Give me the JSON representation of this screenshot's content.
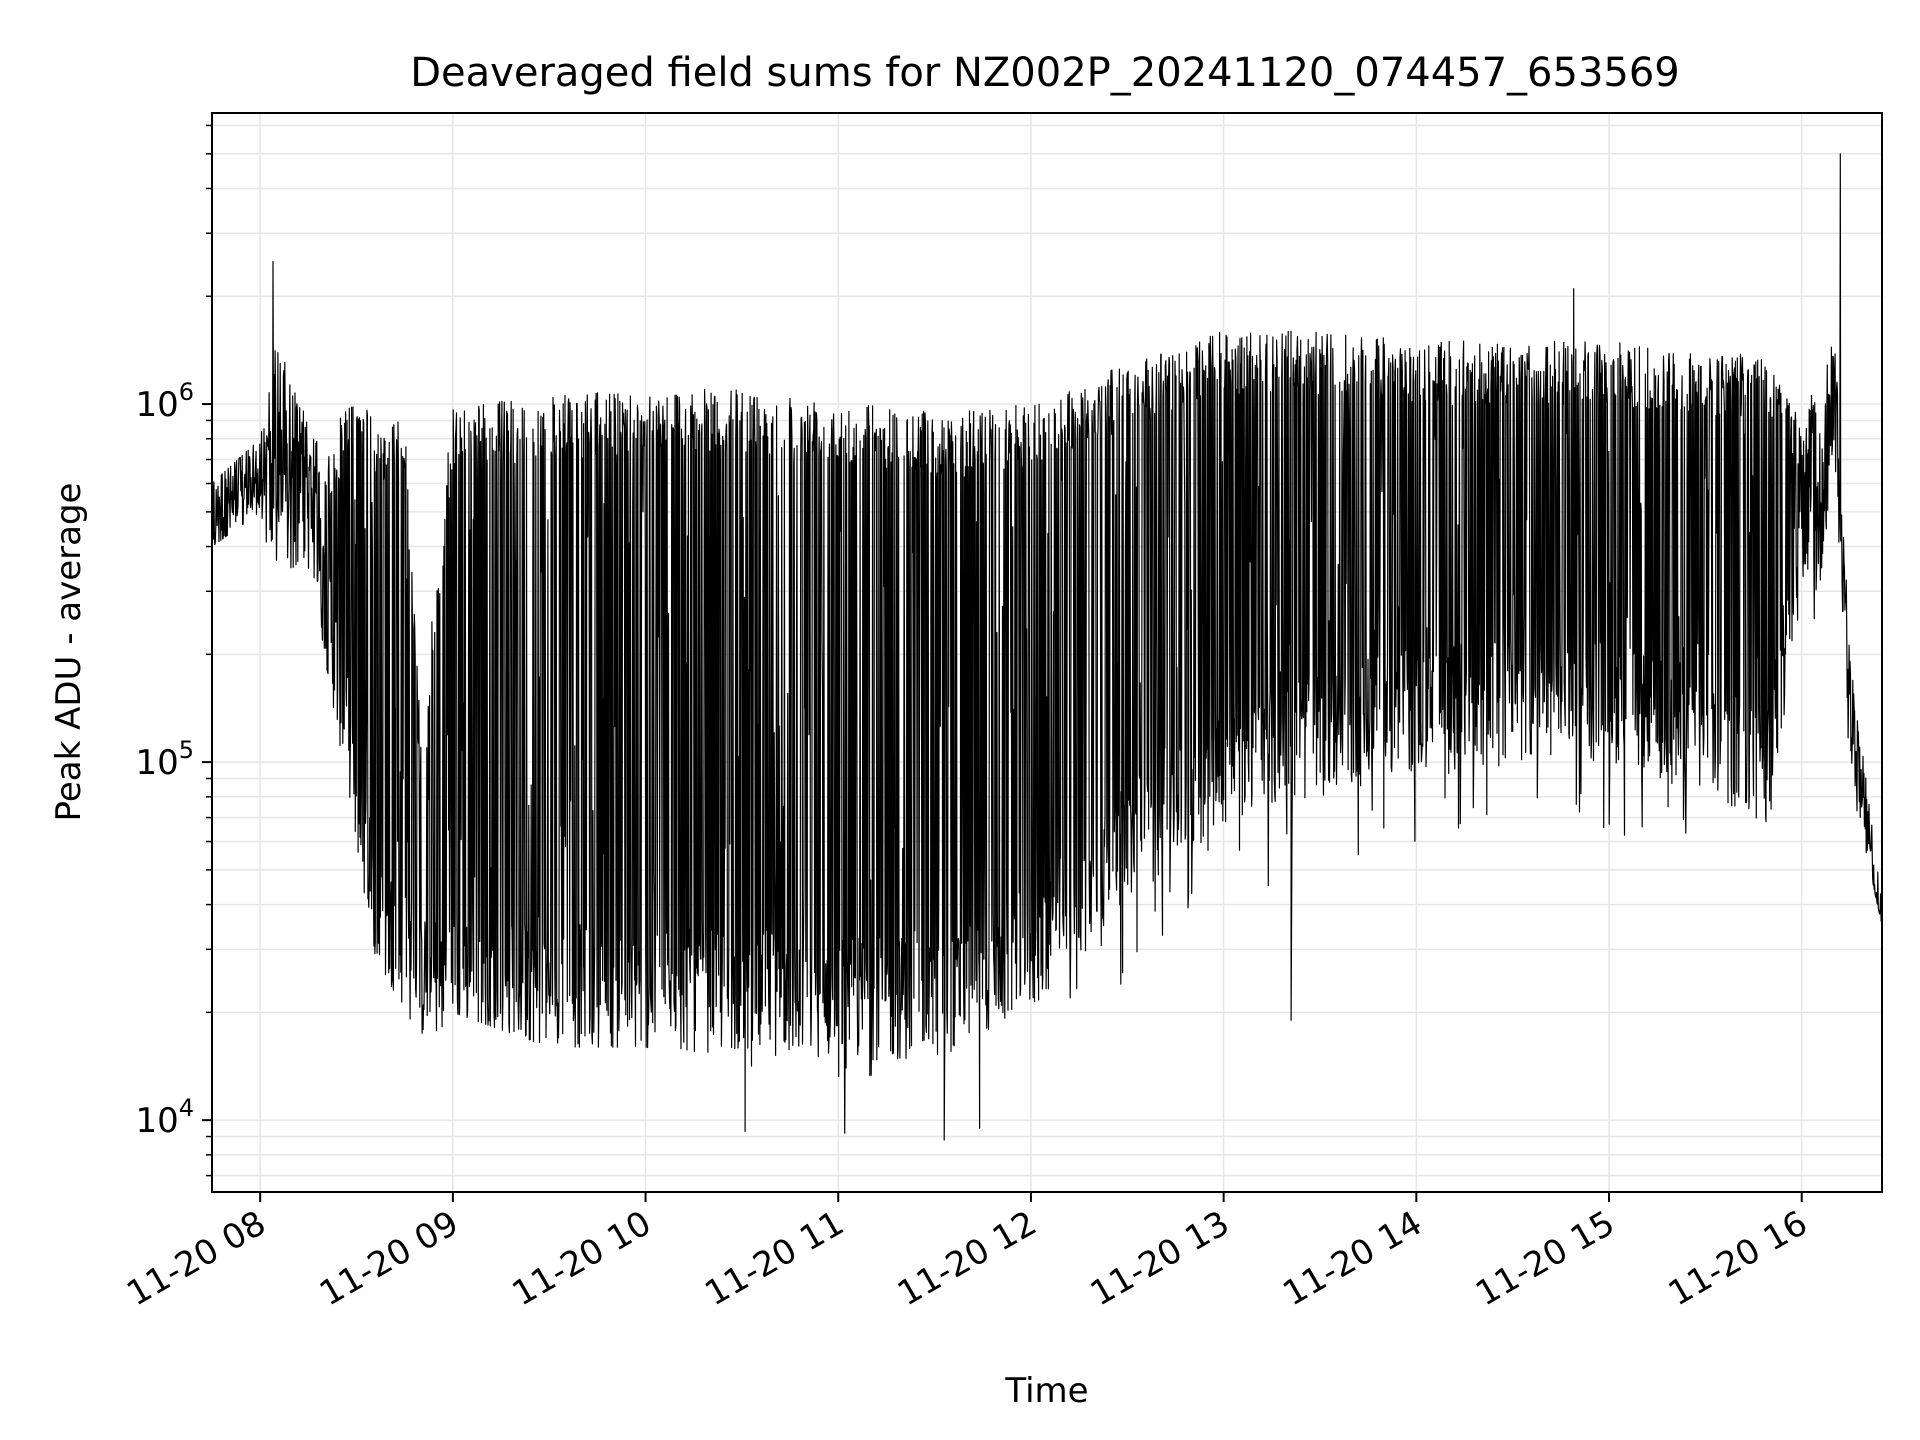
{
  "chart_data": {
    "type": "line",
    "title": "Deaveraged field sums for NZ002P_20241120_074457_653569",
    "xlabel": "Time",
    "ylabel": "Peak ADU - average",
    "y_scale": "log",
    "ylim": [
      6300,
      6500000
    ],
    "xlim": [
      "11-20 07:45",
      "11-20 16:25"
    ],
    "grid": true,
    "line_color": "#000000",
    "grid_color": "#e6e6e6",
    "x_ticks": [
      {
        "t": "11-20 08:00",
        "label": "11-20 08"
      },
      {
        "t": "11-20 09:00",
        "label": "11-20 09"
      },
      {
        "t": "11-20 10:00",
        "label": "11-20 10"
      },
      {
        "t": "11-20 11:00",
        "label": "11-20 11"
      },
      {
        "t": "11-20 12:00",
        "label": "11-20 12"
      },
      {
        "t": "11-20 13:00",
        "label": "11-20 13"
      },
      {
        "t": "11-20 14:00",
        "label": "11-20 14"
      },
      {
        "t": "11-20 15:00",
        "label": "11-20 15"
      },
      {
        "t": "11-20 16:00",
        "label": "11-20 16"
      }
    ],
    "y_ticks": [
      {
        "value": 10000,
        "base": "10",
        "exp": "4"
      },
      {
        "value": 100000,
        "base": "10",
        "exp": "5"
      },
      {
        "value": 1000000,
        "base": "10",
        "exp": "6"
      }
    ],
    "series": [
      {
        "x_envelope": [
          "11-20 07:45",
          "11-20 08:00",
          "11-20 08:05",
          "11-20 08:15",
          "11-20 08:20",
          "11-20 08:30",
          "11-20 08:35",
          "11-20 08:45",
          "11-20 08:50",
          "11-20 09:00",
          "11-20 09:30",
          "11-20 10:00",
          "11-20 10:30",
          "11-20 11:00",
          "11-20 11:30",
          "11-20 12:00",
          "11-20 12:30",
          "11-20 13:00",
          "11-20 13:30",
          "11-20 14:00",
          "11-20 14:30",
          "11-20 15:00",
          "11-20 15:30",
          "11-20 15:50",
          "11-20 16:00",
          "11-20 16:05",
          "11-20 16:10",
          "11-20 16:15",
          "11-20 16:25"
        ],
        "y_max": [
          600000,
          800000,
          1500000,
          900000,
          700000,
          1200000,
          900000,
          900000,
          120000,
          1000000,
          1050000,
          1100000,
          1100000,
          1050000,
          950000,
          1000000,
          1300000,
          1600000,
          1600000,
          1500000,
          1500000,
          1500000,
          1400000,
          1400000,
          900000,
          1200000,
          1800000,
          200000,
          40000
        ],
        "y_min": [
          400000,
          500000,
          300000,
          350000,
          200000,
          60000,
          30000,
          20000,
          14000,
          20000,
          16000,
          16000,
          14000,
          13000,
          13000,
          17000,
          22000,
          40000,
          50000,
          50000,
          65000,
          60000,
          60000,
          60000,
          300000,
          200000,
          800000,
          90000,
          35000
        ],
        "y_typical_low": [
          500000,
          600000,
          500000,
          500000,
          300000,
          80000,
          40000,
          30000,
          25000,
          26000,
          24000,
          23000,
          23000,
          22000,
          22000,
          30000,
          60000,
          100000,
          120000,
          140000,
          150000,
          150000,
          120000,
          100000,
          500000,
          400000,
          1000000,
          120000,
          45000
        ]
      }
    ],
    "spikes": [
      {
        "t": "11-20 08:04",
        "value": 2500000
      },
      {
        "t": "11-20 14:49",
        "value": 2100000
      },
      {
        "t": "11-20 16:12",
        "value": 5000000
      },
      {
        "t": "11-20 11:33",
        "value": 8800
      },
      {
        "t": "11-20 13:21",
        "value": 19000
      },
      {
        "t": "11-20 10:31",
        "value": 9300
      },
      {
        "t": "11-20 11:02",
        "value": 9200
      },
      {
        "t": "11-20 11:44",
        "value": 9500
      }
    ]
  }
}
